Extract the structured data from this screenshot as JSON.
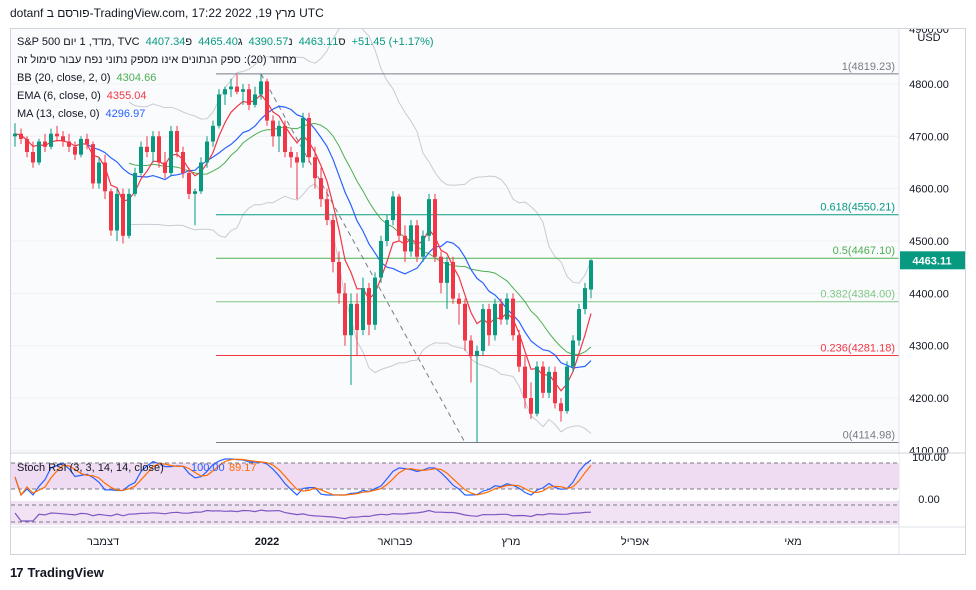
{
  "header": {
    "text": "dotanf פורסם ב-TradingView.com, מרץ 19, 2022 17:22 UTC"
  },
  "legend": {
    "symbol_line": "S&P 500 מדד, 1 יום, TVC",
    "ohlc": {
      "o_label": "פ",
      "o": "4407.34",
      "h_label": "ג",
      "h": "4465.40",
      "l_label": "נ",
      "l": "4390.57",
      "c_label": "ס",
      "c": "4463.11",
      "chg": "+51.45 (+1.17%)"
    },
    "volume_line": "מחזור (20): ספק הנתונים אינו מספק נתוני נפח עבור סימול זה",
    "bb": {
      "label": "BB (20, close, 2, 0)",
      "value": "4304.66"
    },
    "ema": {
      "label": "EMA (6, close, 0)",
      "value": "4355.04"
    },
    "ma": {
      "label": "MA (13, close, 0)",
      "value": "4296.97"
    }
  },
  "price_axis": {
    "currency": "USD",
    "top_label": "4900.00",
    "ticks": [
      "4800.00",
      "4700.00",
      "4600.00",
      "4500.00",
      "4400.00",
      "4300.00",
      "4200.00",
      "4100.00"
    ],
    "last_price": "4463.11"
  },
  "fib_levels": [
    {
      "label": "1(4819.23)",
      "value": 4819.23,
      "color": "#787b86"
    },
    {
      "label": "0.618(4550.21)",
      "value": 4550.21,
      "color": "#089981"
    },
    {
      "label": "0.5(4467.10)",
      "value": 4467.1,
      "color": "#4caf50"
    },
    {
      "label": "0.382(4384.00)",
      "value": 4384.0,
      "color": "#81c784"
    },
    {
      "label": "0.236(4281.18)",
      "value": 4281.18,
      "color": "#f23645"
    },
    {
      "label": "0(4114.98)",
      "value": 4114.98,
      "color": "#787b86"
    }
  ],
  "stoch": {
    "label": "Stoch RSI (3, 3, 14, 14, close)",
    "k_value": "100.00",
    "d_value": "89.17",
    "ticks": [
      "100.00",
      "0.00"
    ]
  },
  "time_axis": {
    "labels": [
      "דצמבר",
      "2022",
      "פברואר",
      "מרץ",
      "אפריל",
      "מאי"
    ]
  },
  "footer": {
    "brand": "TradingView",
    "mark": "17"
  },
  "colors": {
    "up": "#089981",
    "down": "#f23645",
    "ema": "#f23645",
    "ma": "#2962ff",
    "bb_basis": "#4caf50",
    "bb_band": "#c8cbd2",
    "stoch_k": "#2962ff",
    "stoch_d": "#ff6d00",
    "stoch_bg": "#e1bee7"
  },
  "chart_data": {
    "type": "candlestick",
    "ylim": [
      4095,
      4905
    ],
    "candles": [
      {
        "o": 4700,
        "h": 4725,
        "l": 4680,
        "c": 4705
      },
      {
        "o": 4705,
        "h": 4715,
        "l": 4685,
        "c": 4695
      },
      {
        "o": 4695,
        "h": 4700,
        "l": 4660,
        "c": 4670
      },
      {
        "o": 4670,
        "h": 4690,
        "l": 4640,
        "c": 4650
      },
      {
        "o": 4650,
        "h": 4695,
        "l": 4645,
        "c": 4690
      },
      {
        "o": 4690,
        "h": 4705,
        "l": 4670,
        "c": 4680
      },
      {
        "o": 4680,
        "h": 4715,
        "l": 4675,
        "c": 4705
      },
      {
        "o": 4705,
        "h": 4720,
        "l": 4690,
        "c": 4700
      },
      {
        "o": 4700,
        "h": 4710,
        "l": 4680,
        "c": 4690
      },
      {
        "o": 4690,
        "h": 4705,
        "l": 4670,
        "c": 4680
      },
      {
        "o": 4680,
        "h": 4690,
        "l": 4655,
        "c": 4665
      },
      {
        "o": 4665,
        "h": 4700,
        "l": 4660,
        "c": 4695
      },
      {
        "o": 4695,
        "h": 4705,
        "l": 4675,
        "c": 4685
      },
      {
        "o": 4685,
        "h": 4690,
        "l": 4600,
        "c": 4610
      },
      {
        "o": 4610,
        "h": 4660,
        "l": 4600,
        "c": 4650
      },
      {
        "o": 4650,
        "h": 4665,
        "l": 4580,
        "c": 4595
      },
      {
        "o": 4595,
        "h": 4600,
        "l": 4510,
        "c": 4520
      },
      {
        "o": 4520,
        "h": 4600,
        "l": 4500,
        "c": 4590
      },
      {
        "o": 4590,
        "h": 4600,
        "l": 4495,
        "c": 4510
      },
      {
        "o": 4510,
        "h": 4600,
        "l": 4505,
        "c": 4590
      },
      {
        "o": 4590,
        "h": 4640,
        "l": 4585,
        "c": 4630
      },
      {
        "o": 4630,
        "h": 4690,
        "l": 4625,
        "c": 4680
      },
      {
        "o": 4680,
        "h": 4700,
        "l": 4660,
        "c": 4670
      },
      {
        "o": 4670,
        "h": 4710,
        "l": 4650,
        "c": 4700
      },
      {
        "o": 4700,
        "h": 4710,
        "l": 4640,
        "c": 4650
      },
      {
        "o": 4650,
        "h": 4670,
        "l": 4620,
        "c": 4630
      },
      {
        "o": 4630,
        "h": 4720,
        "l": 4625,
        "c": 4710
      },
      {
        "o": 4710,
        "h": 4720,
        "l": 4660,
        "c": 4670
      },
      {
        "o": 4670,
        "h": 4680,
        "l": 4620,
        "c": 4630
      },
      {
        "o": 4630,
        "h": 4640,
        "l": 4580,
        "c": 4590
      },
      {
        "o": 4590,
        "h": 4600,
        "l": 4530,
        "c": 4595
      },
      {
        "o": 4595,
        "h": 4660,
        "l": 4590,
        "c": 4650
      },
      {
        "o": 4650,
        "h": 4700,
        "l": 4640,
        "c": 4690
      },
      {
        "o": 4690,
        "h": 4730,
        "l": 4680,
        "c": 4720
      },
      {
        "o": 4720,
        "h": 4790,
        "l": 4715,
        "c": 4780
      },
      {
        "o": 4780,
        "h": 4795,
        "l": 4760,
        "c": 4790
      },
      {
        "o": 4790,
        "h": 4810,
        "l": 4775,
        "c": 4795
      },
      {
        "o": 4795,
        "h": 4818,
        "l": 4780,
        "c": 4785
      },
      {
        "o": 4785,
        "h": 4800,
        "l": 4760,
        "c": 4790
      },
      {
        "o": 4790,
        "h": 4800,
        "l": 4750,
        "c": 4760
      },
      {
        "o": 4760,
        "h": 4795,
        "l": 4755,
        "c": 4780
      },
      {
        "o": 4780,
        "h": 4819,
        "l": 4770,
        "c": 4805
      },
      {
        "o": 4805,
        "h": 4810,
        "l": 4720,
        "c": 4730
      },
      {
        "o": 4730,
        "h": 4740,
        "l": 4680,
        "c": 4700
      },
      {
        "o": 4700,
        "h": 4730,
        "l": 4670,
        "c": 4720
      },
      {
        "o": 4720,
        "h": 4730,
        "l": 4660,
        "c": 4670
      },
      {
        "o": 4670,
        "h": 4680,
        "l": 4640,
        "c": 4660
      },
      {
        "o": 4660,
        "h": 4670,
        "l": 4580,
        "c": 4650
      },
      {
        "o": 4650,
        "h": 4745,
        "l": 4640,
        "c": 4735
      },
      {
        "o": 4735,
        "h": 4745,
        "l": 4650,
        "c": 4660
      },
      {
        "o": 4660,
        "h": 4680,
        "l": 4600,
        "c": 4620
      },
      {
        "o": 4620,
        "h": 4640,
        "l": 4565,
        "c": 4580
      },
      {
        "o": 4580,
        "h": 4600,
        "l": 4530,
        "c": 4540
      },
      {
        "o": 4540,
        "h": 4550,
        "l": 4440,
        "c": 4460
      },
      {
        "o": 4460,
        "h": 4480,
        "l": 4380,
        "c": 4400
      },
      {
        "o": 4400,
        "h": 4420,
        "l": 4300,
        "c": 4320
      },
      {
        "o": 4320,
        "h": 4400,
        "l": 4225,
        "c": 4380
      },
      {
        "o": 4380,
        "h": 4400,
        "l": 4280,
        "c": 4330
      },
      {
        "o": 4330,
        "h": 4430,
        "l": 4320,
        "c": 4410
      },
      {
        "o": 4410,
        "h": 4420,
        "l": 4320,
        "c": 4340
      },
      {
        "o": 4340,
        "h": 4440,
        "l": 4330,
        "c": 4430
      },
      {
        "o": 4430,
        "h": 4510,
        "l": 4420,
        "c": 4500
      },
      {
        "o": 4500,
        "h": 4550,
        "l": 4490,
        "c": 4540
      },
      {
        "o": 4540,
        "h": 4595,
        "l": 4530,
        "c": 4585
      },
      {
        "o": 4585,
        "h": 4590,
        "l": 4500,
        "c": 4510
      },
      {
        "o": 4510,
        "h": 4530,
        "l": 4460,
        "c": 4480
      },
      {
        "o": 4480,
        "h": 4540,
        "l": 4470,
        "c": 4530
      },
      {
        "o": 4530,
        "h": 4540,
        "l": 4460,
        "c": 4470
      },
      {
        "o": 4470,
        "h": 4520,
        "l": 4460,
        "c": 4510
      },
      {
        "o": 4510,
        "h": 4590,
        "l": 4500,
        "c": 4580
      },
      {
        "o": 4580,
        "h": 4590,
        "l": 4460,
        "c": 4470
      },
      {
        "o": 4470,
        "h": 4480,
        "l": 4400,
        "c": 4420
      },
      {
        "o": 4420,
        "h": 4470,
        "l": 4370,
        "c": 4460
      },
      {
        "o": 4460,
        "h": 4470,
        "l": 4380,
        "c": 4390
      },
      {
        "o": 4390,
        "h": 4400,
        "l": 4340,
        "c": 4380
      },
      {
        "o": 4380,
        "h": 4390,
        "l": 4290,
        "c": 4310
      },
      {
        "o": 4310,
        "h": 4320,
        "l": 4230,
        "c": 4280
      },
      {
        "o": 4280,
        "h": 4300,
        "l": 4115,
        "c": 4290
      },
      {
        "o": 4290,
        "h": 4380,
        "l": 4280,
        "c": 4370
      },
      {
        "o": 4370,
        "h": 4380,
        "l": 4300,
        "c": 4320
      },
      {
        "o": 4320,
        "h": 4390,
        "l": 4310,
        "c": 4380
      },
      {
        "o": 4380,
        "h": 4390,
        "l": 4340,
        "c": 4350
      },
      {
        "o": 4350,
        "h": 4400,
        "l": 4340,
        "c": 4390
      },
      {
        "o": 4390,
        "h": 4400,
        "l": 4310,
        "c": 4320
      },
      {
        "o": 4320,
        "h": 4330,
        "l": 4250,
        "c": 4260
      },
      {
        "o": 4260,
        "h": 4280,
        "l": 4180,
        "c": 4200
      },
      {
        "o": 4200,
        "h": 4230,
        "l": 4160,
        "c": 4170
      },
      {
        "o": 4170,
        "h": 4270,
        "l": 4165,
        "c": 4260
      },
      {
        "o": 4260,
        "h": 4270,
        "l": 4200,
        "c": 4210
      },
      {
        "o": 4210,
        "h": 4260,
        "l": 4200,
        "c": 4250
      },
      {
        "o": 4250,
        "h": 4260,
        "l": 4180,
        "c": 4190
      },
      {
        "o": 4190,
        "h": 4200,
        "l": 4155,
        "c": 4175
      },
      {
        "o": 4175,
        "h": 4270,
        "l": 4170,
        "c": 4260
      },
      {
        "o": 4260,
        "h": 4320,
        "l": 4250,
        "c": 4310
      },
      {
        "o": 4310,
        "h": 4380,
        "l": 4300,
        "c": 4370
      },
      {
        "o": 4370,
        "h": 4420,
        "l": 4360,
        "c": 4410
      },
      {
        "o": 4407.34,
        "h": 4465.4,
        "l": 4390.57,
        "c": 4463.11
      }
    ]
  }
}
